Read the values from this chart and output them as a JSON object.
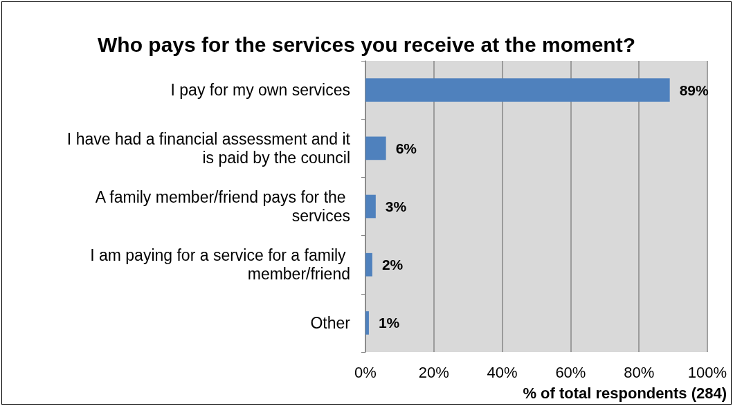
{
  "chart_data": {
    "type": "bar",
    "orientation": "horizontal",
    "title": "Who pays for the services you receive at the moment?",
    "categories": [
      "I pay for my own services",
      "I have had a financial assessment and it is paid by the council",
      "A family member/friend pays for the services",
      "I am paying for a service for a family member/friend",
      "Other"
    ],
    "values": [
      89,
      6,
      3,
      2,
      1
    ],
    "value_labels": [
      "89%",
      "6%",
      "3%",
      "2%",
      "1%"
    ],
    "color": "#4f81bd",
    "xlabel": "% of total respondents (284)",
    "xlim": [
      0,
      100
    ],
    "xticks": [
      {
        "value": 0,
        "label": "0%"
      },
      {
        "value": 20,
        "label": "20%"
      },
      {
        "value": 40,
        "label": "40%"
      },
      {
        "value": 60,
        "label": "60%"
      },
      {
        "value": 80,
        "label": "80%"
      },
      {
        "value": 100,
        "label": "100%"
      }
    ],
    "grid": "x"
  }
}
